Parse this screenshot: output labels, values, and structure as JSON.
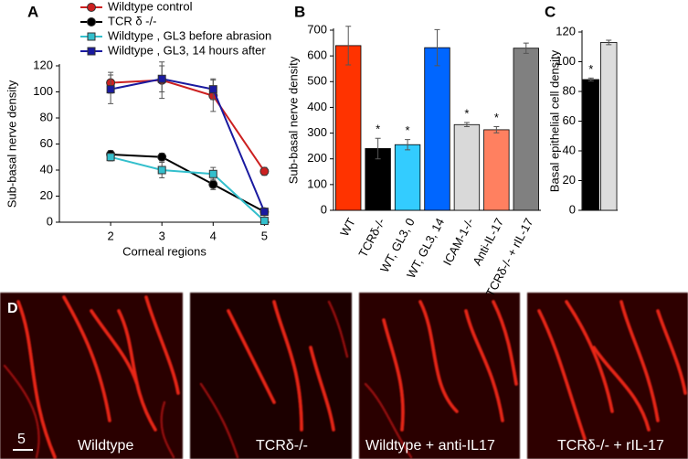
{
  "chart_data": [
    {
      "type": "line",
      "panel": "A",
      "x_label": "Corneal regions",
      "y_label": "Sub-basal nerve density",
      "x": [
        2,
        3,
        4,
        5
      ],
      "xlim": [
        1,
        5.1
      ],
      "xticks": [
        2,
        3,
        4,
        5
      ],
      "ylim": [
        0,
        120
      ],
      "yticks": [
        0,
        20,
        40,
        60,
        80,
        100,
        120
      ],
      "series": [
        {
          "name": "Wildtype  control",
          "color": "#cc2020",
          "marker": "circle",
          "values": [
            107,
            109,
            97,
            39
          ],
          "errors": [
            8,
            14,
            12,
            3
          ]
        },
        {
          "name": "TCR δ -/-",
          "color": "#000000",
          "marker": "circle",
          "values": [
            52,
            50,
            29,
            8
          ],
          "errors": [
            3,
            3,
            4,
            1
          ]
        },
        {
          "name": "Wildtype , GL3 before abrasion",
          "color": "#33bfcc",
          "marker": "square",
          "values": [
            50,
            40,
            37,
            1
          ],
          "errors": [
            3,
            6,
            5,
            1
          ]
        },
        {
          "name": "Wildtype , GL3, 14 hours after",
          "color": "#1a1aa0",
          "marker": "square",
          "values": [
            102,
            110,
            102,
            8
          ],
          "errors": [
            11,
            10,
            8,
            1
          ]
        }
      ]
    },
    {
      "type": "bar",
      "panel": "B",
      "y_label": "Sub-basal nerve density",
      "categories": [
        "WT",
        "TCRδ-/-",
        "WT, GL3, 0",
        "WT, GL3, 14",
        "ICAM-1-/-",
        "Anti-IL-17",
        "TCRδ-/- + rIL-17"
      ],
      "values": [
        640,
        240,
        255,
        632,
        333,
        313,
        630
      ],
      "errors": [
        75,
        40,
        20,
        70,
        8,
        12,
        20
      ],
      "colors": [
        "#ff3300",
        "#000000",
        "#33ccff",
        "#0066ff",
        "#d9d9d9",
        "#ff8060",
        "#808080"
      ],
      "significance": [
        null,
        "*",
        "*",
        null,
        "*",
        "*",
        null
      ],
      "ylim": [
        0,
        700
      ],
      "yticks": [
        0,
        100,
        200,
        300,
        400,
        500,
        600,
        700
      ]
    },
    {
      "type": "bar",
      "panel": "C",
      "y_label": "Basal epithelial cell density",
      "categories": [
        null,
        null
      ],
      "values": [
        88,
        113
      ],
      "errors": [
        1,
        1.5
      ],
      "colors": [
        "#000000",
        "#dddddd"
      ],
      "significance": [
        "*",
        null
      ],
      "ylim": [
        0,
        120
      ],
      "yticks": [
        0,
        20,
        40,
        60,
        80,
        100,
        120
      ]
    }
  ],
  "micrographs": {
    "panel": "D",
    "scale_bar": "5",
    "labels": [
      "Wildtype",
      "TCRδ-/-",
      "Wildtype + anti-IL17",
      "TCRδ-/- + rIL-17"
    ]
  }
}
